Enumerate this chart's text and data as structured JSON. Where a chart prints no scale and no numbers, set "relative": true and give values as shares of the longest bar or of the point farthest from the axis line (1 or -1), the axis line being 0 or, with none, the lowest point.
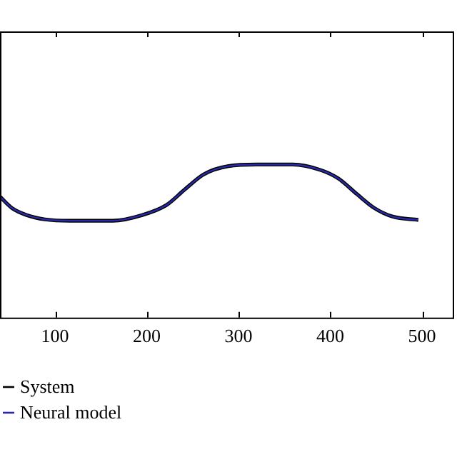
{
  "chart_data": {
    "type": "line",
    "relative": true,
    "xlim": [
      40,
      535
    ],
    "xticks": [
      100,
      200,
      300,
      400,
      500
    ],
    "grid": false,
    "legend": "bottom left",
    "marker": "none",
    "series": [
      {
        "name": "System",
        "color": "#000000",
        "line_style": "solid",
        "x": [
          40,
          53,
          69,
          89,
          116,
          163,
          195,
          221,
          241,
          262,
          289,
          320,
          359,
          390,
          409,
          429,
          448,
          468,
          496
        ],
        "values": [
          0.79,
          0.716,
          0.67,
          0.642,
          0.633,
          0.633,
          0.67,
          0.734,
          0.835,
          0.936,
          0.99,
          1,
          1,
          0.963,
          0.908,
          0.807,
          0.716,
          0.66,
          0.638
        ]
      },
      {
        "name": "Neural model",
        "color": "#2a2aa8",
        "line_style": "solid",
        "x": [
          40,
          53,
          69,
          89,
          116,
          163,
          195,
          221,
          241,
          262,
          289,
          320,
          359,
          390,
          409,
          429,
          448,
          468,
          496
        ],
        "values": [
          0.79,
          0.716,
          0.67,
          0.642,
          0.633,
          0.633,
          0.67,
          0.734,
          0.835,
          0.936,
          0.99,
          1,
          1,
          0.963,
          0.908,
          0.807,
          0.716,
          0.66,
          0.638
        ]
      }
    ]
  }
}
